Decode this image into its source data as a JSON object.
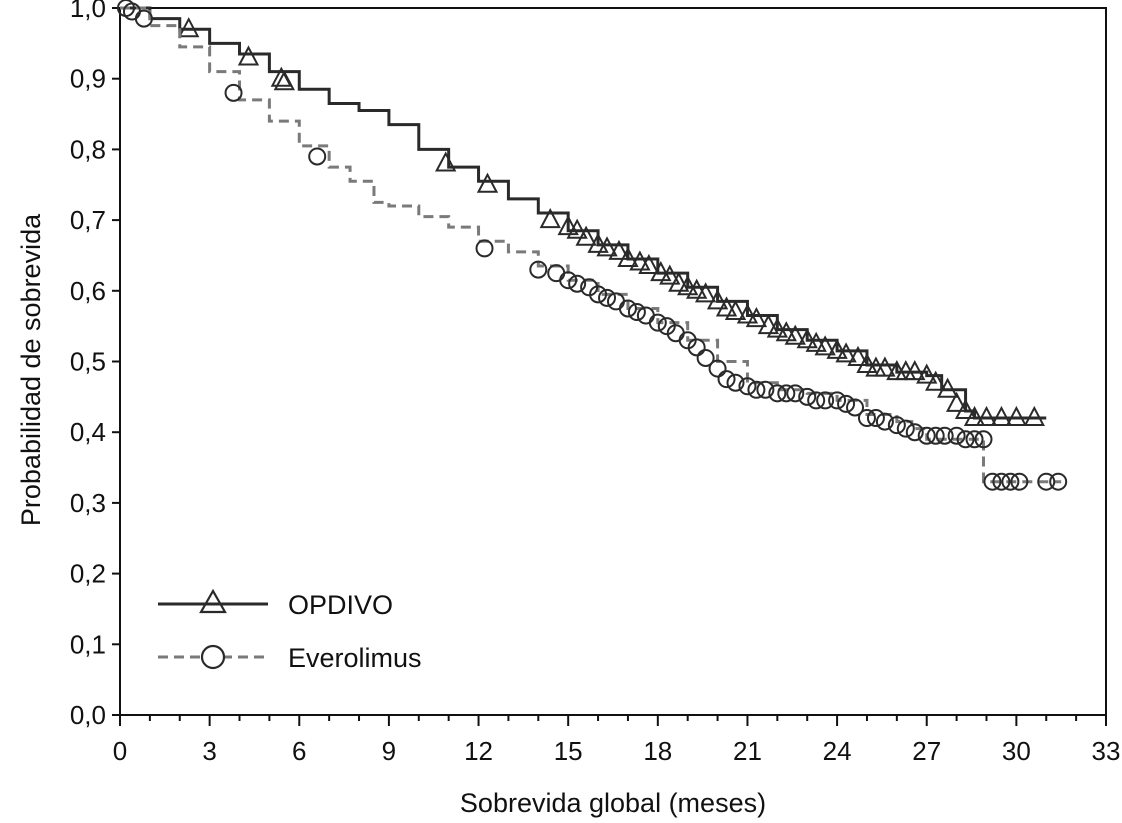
{
  "chart_data": {
    "type": "line",
    "title": "",
    "xlabel": "Sobrevida global (meses)",
    "ylabel": "Probabilidad de sobrevida",
    "xlim": [
      0,
      33
    ],
    "ylim": [
      0,
      1
    ],
    "x_ticks": [
      0,
      3,
      6,
      9,
      12,
      15,
      18,
      21,
      24,
      27,
      30,
      33
    ],
    "x_tick_labels": [
      "0",
      "3",
      "6",
      "9",
      "12",
      "15",
      "18",
      "21",
      "24",
      "27",
      "30",
      "33"
    ],
    "y_ticks": [
      0,
      0.1,
      0.2,
      0.3,
      0.4,
      0.5,
      0.6,
      0.7,
      0.8,
      0.9,
      1.0
    ],
    "y_tick_labels": [
      "0,0",
      "0,1",
      "0,2",
      "0,3",
      "0,4",
      "0,5",
      "0,6",
      "0,7",
      "0,8",
      "0,9",
      "1,0"
    ],
    "grid": false,
    "legend_position": "bottom-left",
    "series": [
      {
        "name": "OPDIVO",
        "color": "#2a2a2a",
        "line_style": "solid",
        "marker": "triangle",
        "points": [
          [
            0,
            1.0
          ],
          [
            1,
            0.985
          ],
          [
            2,
            0.97
          ],
          [
            3,
            0.95
          ],
          [
            4,
            0.935
          ],
          [
            5,
            0.91
          ],
          [
            6,
            0.885
          ],
          [
            7,
            0.865
          ],
          [
            8,
            0.855
          ],
          [
            9,
            0.835
          ],
          [
            10,
            0.8
          ],
          [
            11,
            0.775
          ],
          [
            12,
            0.755
          ],
          [
            13,
            0.73
          ],
          [
            14,
            0.71
          ],
          [
            15,
            0.685
          ],
          [
            16,
            0.665
          ],
          [
            17,
            0.645
          ],
          [
            18,
            0.625
          ],
          [
            19,
            0.605
          ],
          [
            20,
            0.585
          ],
          [
            21,
            0.565
          ],
          [
            22,
            0.545
          ],
          [
            23,
            0.53
          ],
          [
            24,
            0.515
          ],
          [
            25,
            0.495
          ],
          [
            26,
            0.485
          ],
          [
            27,
            0.48
          ],
          [
            27.5,
            0.46
          ],
          [
            28.3,
            0.43
          ],
          [
            28.6,
            0.42
          ],
          [
            31,
            0.42
          ]
        ],
        "censor_x": [
          2.3,
          4.3,
          5.4,
          5.5,
          10.9,
          12.3,
          14.4,
          15,
          15.3,
          15.6,
          16,
          16.3,
          16.7,
          17,
          17.4,
          17.7,
          18.1,
          18.4,
          18.7,
          19,
          19.3,
          19.6,
          20,
          20.3,
          20.6,
          21,
          21.3,
          21.7,
          22,
          22.3,
          22.6,
          23,
          23.3,
          23.6,
          24,
          24.3,
          24.7,
          25,
          25.3,
          25.6,
          26,
          26.3,
          26.6,
          27,
          27.3,
          27.7,
          28,
          28.3,
          28.6,
          29,
          29.5,
          30,
          30.6
        ],
        "censor_y": [
          0.97,
          0.93,
          0.9,
          0.895,
          0.78,
          0.75,
          0.7,
          0.69,
          0.685,
          0.675,
          0.665,
          0.66,
          0.655,
          0.645,
          0.64,
          0.635,
          0.625,
          0.62,
          0.61,
          0.605,
          0.6,
          0.595,
          0.585,
          0.575,
          0.57,
          0.565,
          0.56,
          0.55,
          0.545,
          0.54,
          0.535,
          0.53,
          0.525,
          0.52,
          0.515,
          0.51,
          0.505,
          0.495,
          0.49,
          0.49,
          0.485,
          0.485,
          0.485,
          0.48,
          0.47,
          0.46,
          0.44,
          0.43,
          0.42,
          0.42,
          0.42,
          0.42,
          0.42
        ]
      },
      {
        "name": "Everolimus",
        "color": "#7a7a7a",
        "line_style": "dashed",
        "marker": "circle",
        "points": [
          [
            0,
            1.0
          ],
          [
            1,
            0.975
          ],
          [
            2,
            0.945
          ],
          [
            3,
            0.91
          ],
          [
            4,
            0.87
          ],
          [
            5,
            0.84
          ],
          [
            6,
            0.805
          ],
          [
            7,
            0.775
          ],
          [
            7.7,
            0.755
          ],
          [
            8.5,
            0.725
          ],
          [
            9,
            0.72
          ],
          [
            10,
            0.705
          ],
          [
            11,
            0.69
          ],
          [
            12,
            0.67
          ],
          [
            13,
            0.655
          ],
          [
            14,
            0.635
          ],
          [
            15,
            0.615
          ],
          [
            16,
            0.595
          ],
          [
            17,
            0.575
          ],
          [
            18,
            0.555
          ],
          [
            19,
            0.53
          ],
          [
            20,
            0.5
          ],
          [
            21,
            0.47
          ],
          [
            22,
            0.46
          ],
          [
            23,
            0.455
          ],
          [
            24,
            0.445
          ],
          [
            25,
            0.425
          ],
          [
            26,
            0.415
          ],
          [
            26.5,
            0.405
          ],
          [
            27,
            0.39
          ],
          [
            28.8,
            0.39
          ],
          [
            28.9,
            0.33
          ],
          [
            31.5,
            0.33
          ]
        ],
        "censor_x": [
          0.2,
          0.4,
          0.8,
          3.8,
          6.6,
          12.2,
          14,
          14.6,
          15,
          15.3,
          15.7,
          16,
          16.3,
          16.6,
          17,
          17.3,
          17.6,
          18,
          18.3,
          18.6,
          19,
          19.3,
          19.6,
          20,
          20.3,
          20.6,
          21,
          21.3,
          21.6,
          22,
          22.3,
          22.6,
          23,
          23.3,
          23.6,
          24,
          24.3,
          24.6,
          25,
          25.3,
          25.6,
          26,
          26.3,
          26.6,
          27,
          27.3,
          27.6,
          28,
          28.3,
          28.6,
          28.9,
          29.2,
          29.5,
          29.8,
          30.1,
          31,
          31.4
        ],
        "censor_y": [
          1.0,
          0.995,
          0.985,
          0.88,
          0.79,
          0.66,
          0.63,
          0.625,
          0.615,
          0.61,
          0.605,
          0.595,
          0.59,
          0.585,
          0.575,
          0.57,
          0.565,
          0.555,
          0.55,
          0.54,
          0.53,
          0.52,
          0.505,
          0.49,
          0.475,
          0.47,
          0.465,
          0.46,
          0.46,
          0.455,
          0.455,
          0.455,
          0.45,
          0.445,
          0.445,
          0.445,
          0.44,
          0.435,
          0.42,
          0.42,
          0.415,
          0.41,
          0.405,
          0.4,
          0.395,
          0.395,
          0.395,
          0.395,
          0.39,
          0.39,
          0.39,
          0.33,
          0.33,
          0.33,
          0.33,
          0.33,
          0.33
        ]
      }
    ]
  }
}
